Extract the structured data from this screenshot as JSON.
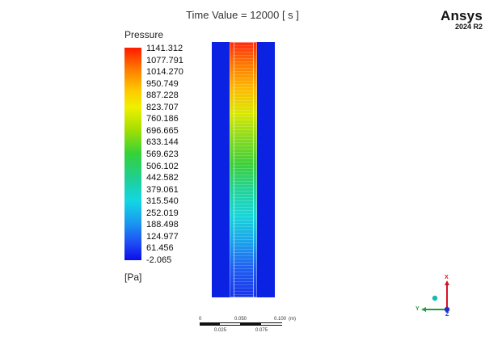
{
  "header": {
    "time_value": "Time Value = 12000 [ s ]",
    "brand_name": "Ansys",
    "brand_version": "2024 R2"
  },
  "legend": {
    "title": "Pressure",
    "unit": "[Pa]",
    "ticks": [
      "1141.312",
      "1077.791",
      "1014.270",
      "950.749",
      "887.228",
      "823.707",
      "760.186",
      "696.665",
      "633.144",
      "569.623",
      "506.102",
      "442.582",
      "379.061",
      "315.540",
      "252.019",
      "188.498",
      "124.977",
      "61.456",
      "-2.065"
    ],
    "colors": {
      "max": "#ff1a00",
      "min": "#0a0ee8"
    }
  },
  "scale_bar": {
    "top_labels": [
      "0",
      "0.050",
      "0.100"
    ],
    "unit": "(m)",
    "bottom_labels": [
      "0.025",
      "0.075"
    ]
  },
  "triad": {
    "x_label": "X",
    "y_label": "Y",
    "z_label": "Z",
    "x_color": "#d4132a",
    "y_color": "#1f9d3a",
    "z_color": "#1f2fd1"
  }
}
